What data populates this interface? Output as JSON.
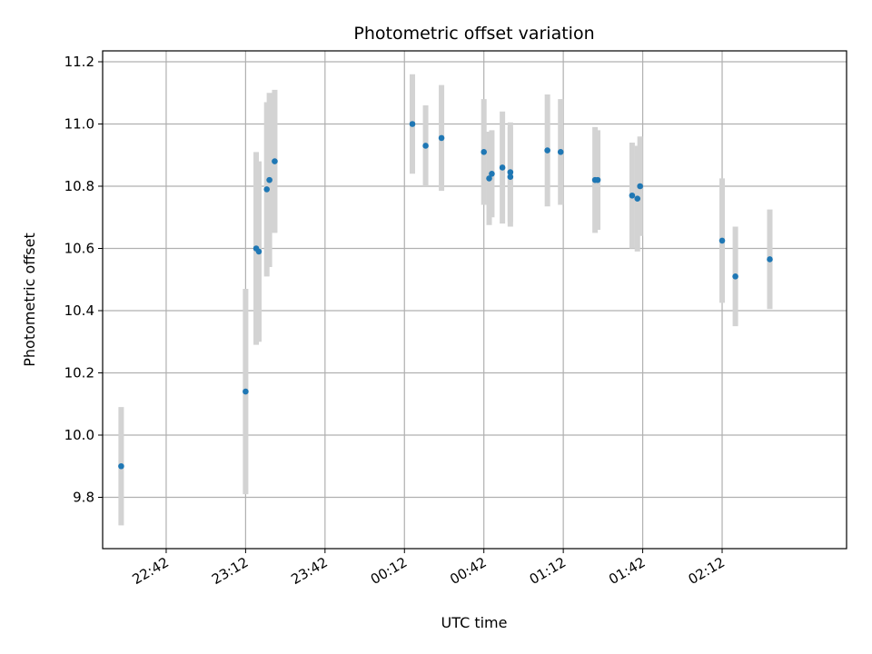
{
  "chart_data": {
    "type": "scatter",
    "title": "Photometric offset variation",
    "xlabel": "UTC time",
    "ylabel": "Photometric offset",
    "x_is_time": true,
    "xlim": [
      "22:18",
      "02:59"
    ],
    "ylim": [
      9.635,
      11.235
    ],
    "xticks": [
      "22:42",
      "23:12",
      "23:42",
      "00:12",
      "00:42",
      "01:12",
      "01:42",
      "02:12"
    ],
    "yticks": [
      "9.8",
      "10.0",
      "10.2",
      "10.4",
      "10.6",
      "10.8",
      "11.0",
      "11.2"
    ],
    "grid": true,
    "point_color": "#1f77b4",
    "errorbar_color": "#d3d3d3",
    "points": [
      {
        "x": "22:25",
        "y": 9.9,
        "err": 0.19
      },
      {
        "x": "23:12",
        "y": 10.14,
        "err": 0.33
      },
      {
        "x": "23:16",
        "y": 10.6,
        "err": 0.31
      },
      {
        "x": "23:17",
        "y": 10.59,
        "err": 0.29
      },
      {
        "x": "23:20",
        "y": 10.79,
        "err": 0.28
      },
      {
        "x": "23:21",
        "y": 10.82,
        "err": 0.28
      },
      {
        "x": "23:23",
        "y": 10.88,
        "err": 0.23
      },
      {
        "x": "00:15",
        "y": 11.0,
        "err": 0.16
      },
      {
        "x": "00:20",
        "y": 10.93,
        "err": 0.13
      },
      {
        "x": "00:26",
        "y": 10.955,
        "err": 0.17
      },
      {
        "x": "00:42",
        "y": 10.91,
        "err": 0.17
      },
      {
        "x": "00:44",
        "y": 10.825,
        "err": 0.15
      },
      {
        "x": "00:45",
        "y": 10.84,
        "err": 0.14
      },
      {
        "x": "00:49",
        "y": 10.86,
        "err": 0.18
      },
      {
        "x": "00:52",
        "y": 10.845,
        "err": 0.16
      },
      {
        "x": "00:52",
        "y": 10.83,
        "err": 0.16
      },
      {
        "x": "01:06",
        "y": 10.915,
        "err": 0.18
      },
      {
        "x": "01:11",
        "y": 10.91,
        "err": 0.17
      },
      {
        "x": "01:24",
        "y": 10.82,
        "err": 0.17
      },
      {
        "x": "01:25",
        "y": 10.82,
        "err": 0.16
      },
      {
        "x": "01:38",
        "y": 10.77,
        "err": 0.17
      },
      {
        "x": "01:40",
        "y": 10.76,
        "err": 0.17
      },
      {
        "x": "01:41",
        "y": 10.8,
        "err": 0.16
      },
      {
        "x": "02:12",
        "y": 10.625,
        "err": 0.2
      },
      {
        "x": "02:17",
        "y": 10.51,
        "err": 0.16
      },
      {
        "x": "02:30",
        "y": 10.565,
        "err": 0.16
      }
    ]
  }
}
